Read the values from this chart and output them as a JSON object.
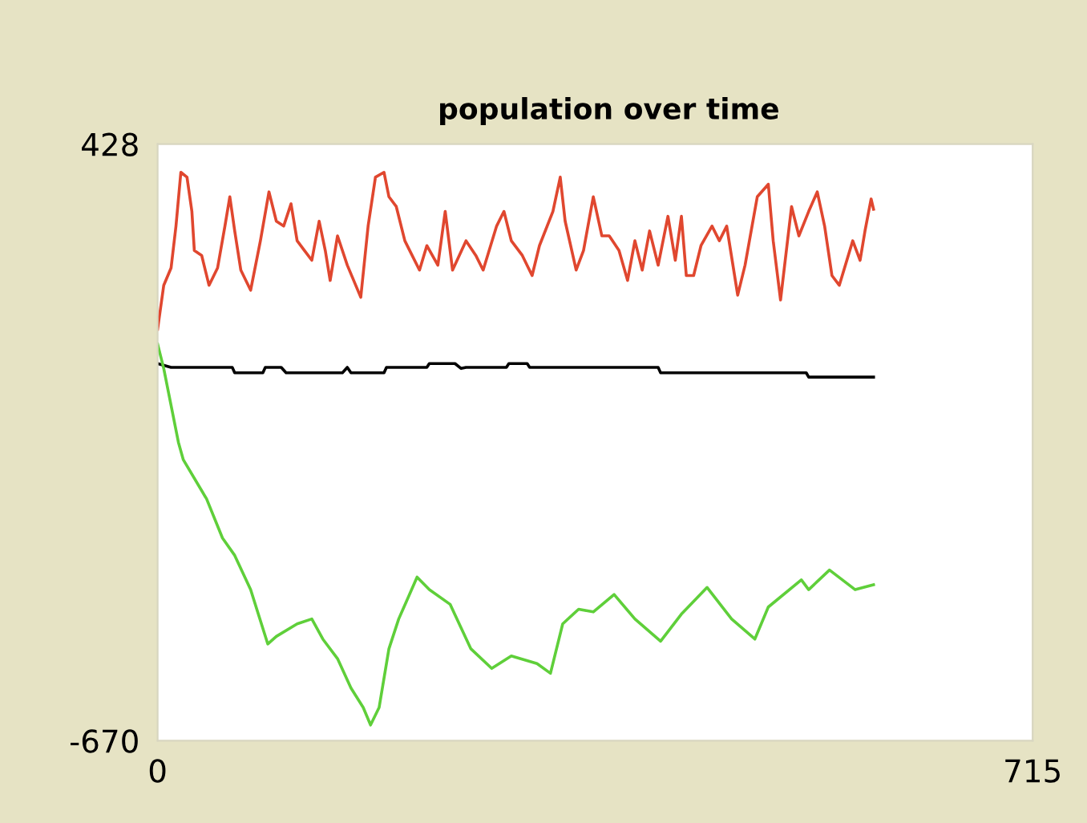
{
  "chart_data": {
    "type": "line",
    "title": "population over time",
    "xlim": [
      0,
      715
    ],
    "ylim": [
      -670,
      428
    ],
    "xticks": [
      0,
      715
    ],
    "yticks": [
      -670,
      428
    ],
    "grid": false,
    "series": [
      {
        "color": "#e0472f",
        "x": [
          0,
          5,
          11,
          15,
          19,
          24,
          28,
          30,
          36,
          42,
          49,
          55,
          59,
          63,
          68,
          76,
          84,
          91,
          97,
          103,
          109,
          114,
          120,
          126,
          132,
          137,
          141,
          147,
          155,
          166,
          172,
          178,
          185,
          189,
          195,
          202,
          214,
          220,
          229,
          235,
          241,
          252,
          260,
          266,
          277,
          283,
          289,
          298,
          306,
          312,
          323,
          329,
          333,
          342,
          348,
          356,
          363,
          369,
          377,
          384,
          390,
          396,
          402,
          409,
          417,
          423,
          428,
          432,
          438,
          444,
          453,
          459,
          465,
          474,
          480,
          490,
          499,
          503,
          509,
          518,
          524,
          532,
          539,
          545,
          551,
          557,
          568,
          574,
          578,
          583,
          585
        ],
        "values": [
          87,
          168,
          200,
          277,
          376,
          367,
          304,
          232,
          223,
          168,
          200,
          277,
          331,
          268,
          196,
          159,
          250,
          340,
          286,
          277,
          318,
          250,
          232,
          214,
          286,
          232,
          177,
          259,
          205,
          146,
          277,
          367,
          376,
          331,
          313,
          250,
          196,
          241,
          205,
          304,
          196,
          250,
          223,
          196,
          277,
          304,
          250,
          223,
          186,
          241,
          304,
          367,
          286,
          196,
          232,
          331,
          259,
          259,
          232,
          177,
          250,
          196,
          268,
          205,
          295,
          214,
          295,
          186,
          186,
          241,
          277,
          250,
          277,
          150,
          205,
          331,
          354,
          250,
          141,
          313,
          259,
          304,
          340,
          277,
          186,
          168,
          250,
          214,
          268,
          327,
          308
        ]
      },
      {
        "color": "#000000",
        "x": [
          0,
          11,
          61,
          63,
          86,
          88,
          101,
          105,
          151,
          155,
          158,
          185,
          187,
          220,
          222,
          243,
          248,
          252,
          285,
          287,
          302,
          304,
          409,
          411,
          530,
          532,
          585
        ],
        "values": [
          24,
          17,
          17,
          7,
          7,
          17,
          17,
          7,
          7,
          17,
          7,
          7,
          17,
          17,
          24,
          24,
          15,
          17,
          17,
          24,
          24,
          17,
          17,
          7,
          7,
          -1,
          -1
        ]
      },
      {
        "color": "#5fcf3a",
        "x": [
          0,
          5,
          17,
          21,
          40,
          53,
          63,
          76,
          90,
          97,
          114,
          126,
          135,
          147,
          158,
          168,
          174,
          181,
          189,
          197,
          212,
          222,
          239,
          256,
          273,
          289,
          310,
          321,
          331,
          344,
          356,
          373,
          390,
          411,
          428,
          449,
          469,
          488,
          499,
          526,
          532,
          549,
          570,
          585
        ],
        "values": [
          60,
          15,
          -121,
          -153,
          -225,
          -297,
          -329,
          -392,
          -492,
          -478,
          -455,
          -446,
          -483,
          -519,
          -573,
          -609,
          -641,
          -609,
          -501,
          -446,
          -369,
          -392,
          -419,
          -501,
          -537,
          -514,
          -528,
          -546,
          -455,
          -428,
          -433,
          -401,
          -446,
          -487,
          -437,
          -388,
          -446,
          -483,
          -424,
          -374,
          -392,
          -356,
          -392,
          -383
        ]
      }
    ]
  }
}
